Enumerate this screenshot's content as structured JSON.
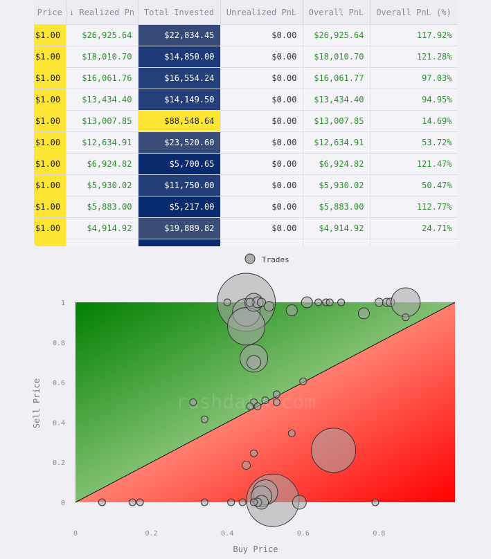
{
  "table": {
    "columns": [
      "Price",
      "↓ Realized Pn",
      "Total Invested",
      "Unrealized PnL",
      "Overall PnL",
      "Overall PnL (%)"
    ],
    "rows": [
      {
        "price": "$1.00",
        "realized": "$26,925.64",
        "invested": "$22,834.45",
        "unrealized": "$0.00",
        "overall": "$26,925.64",
        "pct": "117.92%"
      },
      {
        "price": "$1.00",
        "realized": "$18,010.70",
        "invested": "$14,850.00",
        "unrealized": "$0.00",
        "overall": "$18,010.70",
        "pct": "121.28%"
      },
      {
        "price": "$1.00",
        "realized": "$16,061.76",
        "invested": "$16,554.24",
        "unrealized": "$0.00",
        "overall": "$16,061.77",
        "pct": "97.03%"
      },
      {
        "price": "$1.00",
        "realized": "$13,434.40",
        "invested": "$14,149.50",
        "unrealized": "$0.00",
        "overall": "$13,434.40",
        "pct": "94.95%"
      },
      {
        "price": "$1.00",
        "realized": "$13,007.85",
        "invested": "$88,548.64",
        "unrealized": "$0.00",
        "overall": "$13,007.85",
        "pct": "14.69%"
      },
      {
        "price": "$1.00",
        "realized": "$12,634.91",
        "invested": "$23,520.60",
        "unrealized": "$0.00",
        "overall": "$12,634.91",
        "pct": "53.72%"
      },
      {
        "price": "$1.00",
        "realized": "$6,924.82",
        "invested": "$5,700.65",
        "unrealized": "$0.00",
        "overall": "$6,924.82",
        "pct": "121.47%"
      },
      {
        "price": "$1.00",
        "realized": "$5,930.02",
        "invested": "$11,750.00",
        "unrealized": "$0.00",
        "overall": "$5,930.02",
        "pct": "50.47%"
      },
      {
        "price": "$1.00",
        "realized": "$5,883.00",
        "invested": "$5,217.00",
        "unrealized": "$0.00",
        "overall": "$5,883.00",
        "pct": "112.77%"
      },
      {
        "price": "$1.00",
        "realized": "$4,914.92",
        "invested": "$19,889.82",
        "unrealized": "$0.00",
        "overall": "$4,914.92",
        "pct": "24.71%"
      }
    ],
    "invested_colors": [
      "#354a78",
      "#1f3a78",
      "#24407a",
      "#253f7a",
      "#ffe533",
      "#3a4d78",
      "#0a2a6e",
      "#223f7a",
      "#082a6e",
      "#3b4e78"
    ],
    "colors": {
      "price_bg": "#ffe533",
      "positive_text": "#2f8a2f"
    }
  },
  "chart_data": {
    "type": "scatter",
    "xlabel": "Buy Price",
    "ylabel": "Sell Price",
    "legend": {
      "label": "Trades",
      "placement": "top-center"
    },
    "xlim": [
      0,
      1
    ],
    "ylim": [
      0,
      1
    ],
    "xticks": [
      "0",
      "0.2",
      "0.4",
      "0.6",
      "0.8"
    ],
    "yticks": [
      "0",
      "0.2",
      "0.4",
      "0.6",
      "0.8",
      "1"
    ],
    "diagonal_line": true,
    "background": "gradient green above diagonal, red below diagonal",
    "colors": {
      "above": "#008000",
      "below": "#ff0000",
      "mid": "#ffffe0",
      "points": "#a8a8a8"
    },
    "points": [
      {
        "x": 0.45,
        "y": 1.0,
        "r": 42
      },
      {
        "x": 0.45,
        "y": 0.95,
        "r": 20
      },
      {
        "x": 0.45,
        "y": 0.88,
        "r": 27
      },
      {
        "x": 0.47,
        "y": 1.0,
        "r": 13
      },
      {
        "x": 0.48,
        "y": 1.0,
        "r": 8
      },
      {
        "x": 0.46,
        "y": 1.0,
        "r": 6
      },
      {
        "x": 0.4,
        "y": 1.0,
        "r": 5
      },
      {
        "x": 0.51,
        "y": 0.98,
        "r": 7
      },
      {
        "x": 0.49,
        "y": 1.0,
        "r": 6
      },
      {
        "x": 0.57,
        "y": 0.96,
        "r": 8
      },
      {
        "x": 0.61,
        "y": 1.0,
        "r": 8
      },
      {
        "x": 0.64,
        "y": 1.0,
        "r": 5
      },
      {
        "x": 0.66,
        "y": 1.0,
        "r": 5
      },
      {
        "x": 0.67,
        "y": 1.0,
        "r": 5
      },
      {
        "x": 0.7,
        "y": 1.0,
        "r": 5
      },
      {
        "x": 0.76,
        "y": 0.945,
        "r": 8
      },
      {
        "x": 0.8,
        "y": 1.0,
        "r": 6
      },
      {
        "x": 0.82,
        "y": 1.0,
        "r": 6
      },
      {
        "x": 0.83,
        "y": 1.0,
        "r": 6
      },
      {
        "x": 0.87,
        "y": 1.0,
        "r": 21
      },
      {
        "x": 0.87,
        "y": 0.925,
        "r": 5
      },
      {
        "x": 0.47,
        "y": 0.72,
        "r": 20
      },
      {
        "x": 0.47,
        "y": 0.7,
        "r": 10
      },
      {
        "x": 0.6,
        "y": 0.605,
        "r": 5
      },
      {
        "x": 0.53,
        "y": 0.54,
        "r": 5
      },
      {
        "x": 0.5,
        "y": 0.51,
        "r": 5
      },
      {
        "x": 0.53,
        "y": 0.5,
        "r": 5
      },
      {
        "x": 0.31,
        "y": 0.5,
        "r": 5
      },
      {
        "x": 0.47,
        "y": 0.5,
        "r": 5
      },
      {
        "x": 0.46,
        "y": 0.48,
        "r": 5
      },
      {
        "x": 0.48,
        "y": 0.48,
        "r": 5
      },
      {
        "x": 0.34,
        "y": 0.415,
        "r": 5
      },
      {
        "x": 0.57,
        "y": 0.345,
        "r": 5
      },
      {
        "x": 0.68,
        "y": 0.26,
        "r": 32
      },
      {
        "x": 0.47,
        "y": 0.245,
        "r": 5
      },
      {
        "x": 0.45,
        "y": 0.185,
        "r": 6
      },
      {
        "x": 0.52,
        "y": 0.01,
        "r": 38
      },
      {
        "x": 0.5,
        "y": 0.05,
        "r": 18
      },
      {
        "x": 0.49,
        "y": 0.03,
        "r": 15
      },
      {
        "x": 0.49,
        "y": 0.0,
        "r": 10
      },
      {
        "x": 0.48,
        "y": 0.0,
        "r": 6
      },
      {
        "x": 0.47,
        "y": 0.0,
        "r": 5
      },
      {
        "x": 0.44,
        "y": 0.0,
        "r": 5
      },
      {
        "x": 0.41,
        "y": 0.0,
        "r": 5
      },
      {
        "x": 0.34,
        "y": 0.0,
        "r": 5
      },
      {
        "x": 0.17,
        "y": 0.0,
        "r": 5
      },
      {
        "x": 0.15,
        "y": 0.0,
        "r": 5
      },
      {
        "x": 0.07,
        "y": 0.0,
        "r": 5
      },
      {
        "x": 0.59,
        "y": 0.0,
        "r": 10
      },
      {
        "x": 0.79,
        "y": 0.0,
        "r": 5
      }
    ],
    "watermark": "rushdata.com"
  }
}
